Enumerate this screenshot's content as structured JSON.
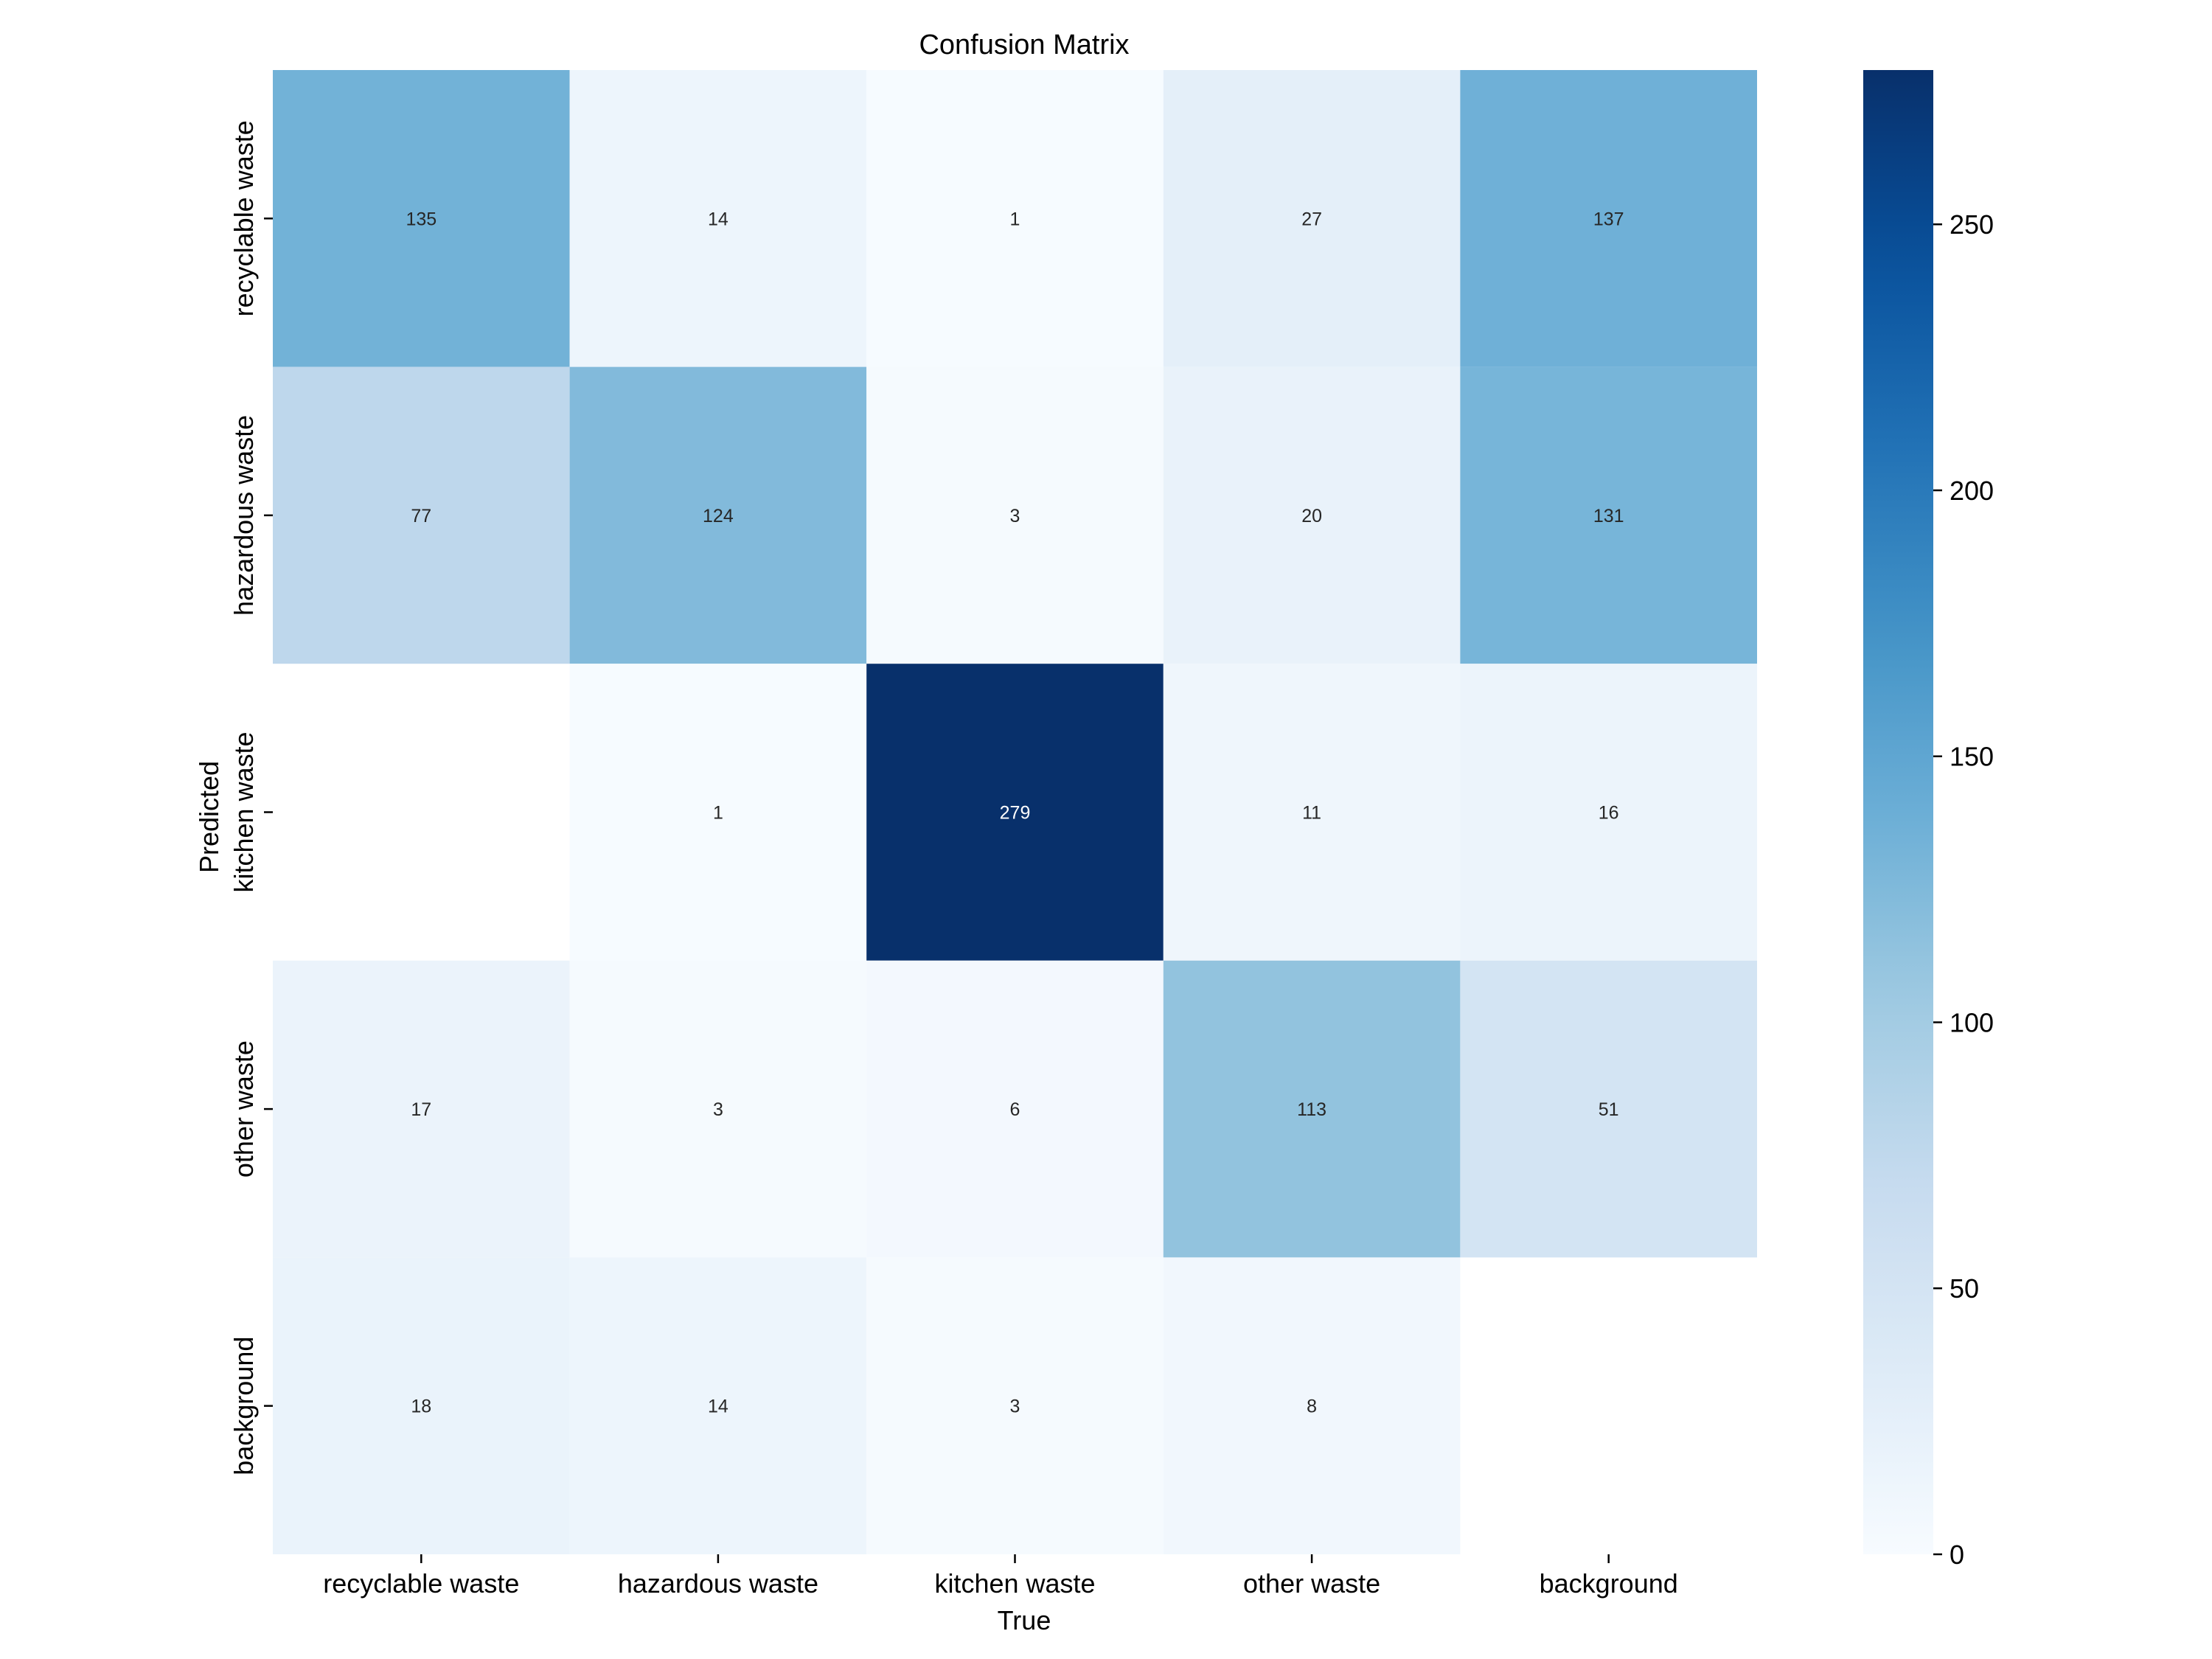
{
  "chart_data": {
    "type": "heatmap",
    "title": "Confusion Matrix",
    "xlabel": "True",
    "ylabel": "Predicted",
    "x_categories": [
      "recyclable waste",
      "hazardous waste",
      "kitchen waste",
      "other waste",
      "background"
    ],
    "y_categories": [
      "recyclable waste",
      "hazardous waste",
      "kitchen waste",
      "other waste",
      "background"
    ],
    "matrix": [
      [
        135,
        14,
        1,
        27,
        137
      ],
      [
        77,
        124,
        3,
        20,
        131
      ],
      [
        null,
        1,
        279,
        11,
        16
      ],
      [
        17,
        3,
        6,
        113,
        51
      ],
      [
        18,
        14,
        3,
        8,
        null
      ]
    ],
    "colormap": "Blues",
    "colorbar": {
      "vmin": 0,
      "vmax": 279,
      "ticks": [
        0,
        50,
        100,
        150,
        200,
        250
      ]
    },
    "grid": false
  }
}
